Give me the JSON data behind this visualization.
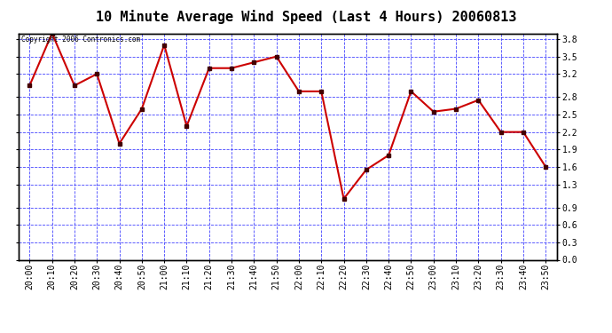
{
  "title": "10 Minute Average Wind Speed (Last 4 Hours) 20060813",
  "copyright_text": "Copyright 2006 Contronics.com",
  "x_labels": [
    "20:00",
    "20:10",
    "20:20",
    "20:30",
    "20:40",
    "20:50",
    "21:00",
    "21:10",
    "21:20",
    "21:30",
    "21:40",
    "21:50",
    "22:00",
    "22:10",
    "22:20",
    "22:30",
    "22:40",
    "22:50",
    "23:00",
    "23:10",
    "23:20",
    "23:30",
    "23:40",
    "23:50"
  ],
  "y_values": [
    3.0,
    3.9,
    3.0,
    3.2,
    2.0,
    2.6,
    3.7,
    2.3,
    3.3,
    3.3,
    3.4,
    3.5,
    2.9,
    2.9,
    1.05,
    1.55,
    1.8,
    2.9,
    2.55,
    2.6,
    2.75,
    2.2,
    2.2,
    1.6
  ],
  "line_color": "#cc0000",
  "marker_color": "#440000",
  "background_color": "#ffffff",
  "plot_bg_color": "#ffffff",
  "grid_color": "#4444ff",
  "border_color": "#000000",
  "text_color": "#000000",
  "title_fontsize": 11,
  "tick_fontsize": 7,
  "ylim_min": 0.0,
  "ylim_max": 3.9,
  "ytick_vals": [
    0.0,
    0.3,
    0.6,
    0.9,
    1.3,
    1.6,
    1.9,
    2.2,
    2.5,
    2.8,
    3.2,
    3.5,
    3.8
  ]
}
